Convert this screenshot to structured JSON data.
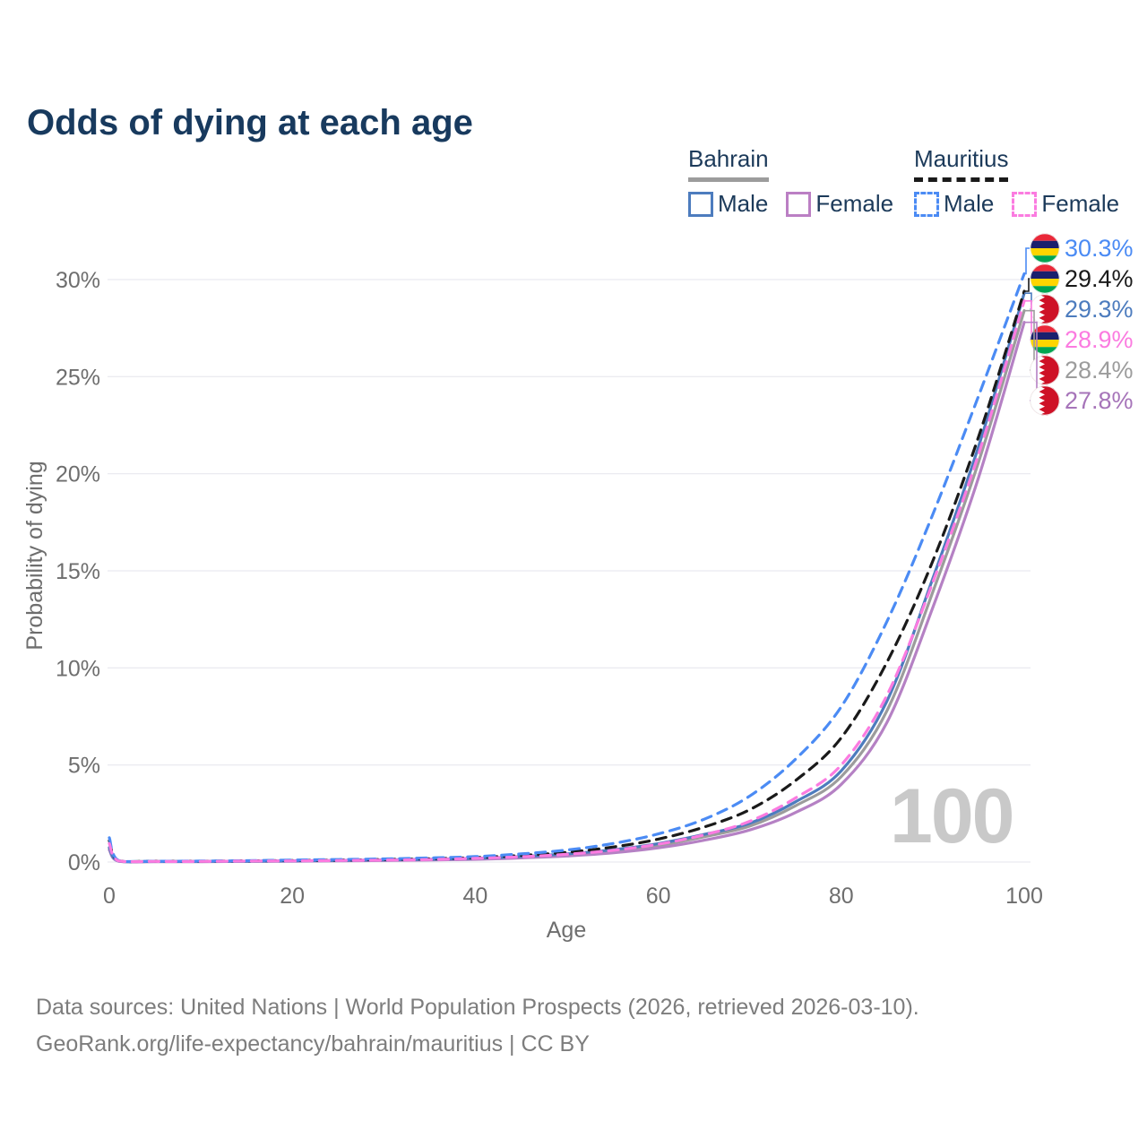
{
  "title": "Odds of dying at each age",
  "legend": {
    "groups": [
      {
        "title": "Bahrain",
        "line_style": "solid",
        "line_color": "#9c9c9c",
        "items": [
          {
            "label": "Male",
            "color": "#4d7cbe"
          },
          {
            "label": "Female",
            "color": "#bb7fc4"
          }
        ]
      },
      {
        "title": "Mauritius",
        "line_style": "dashed",
        "line_color": "#1a1a1a",
        "items": [
          {
            "label": "Male",
            "color": "#4b8bf4"
          },
          {
            "label": "Female",
            "color": "#fb7be0"
          }
        ]
      }
    ]
  },
  "footer": {
    "line1": "Data sources: United Nations | World Population Prospects (2026, retrieved 2026-03-10).",
    "line2": "GeoRank.org/life-expectancy/bahrain/mauritius | CC BY"
  },
  "chart_data": {
    "type": "line",
    "title": "Odds of dying at each age",
    "xlabel": "Age",
    "ylabel": "Probability of dying",
    "xlim": [
      0,
      100
    ],
    "ylim": [
      0,
      31
    ],
    "xticks": [
      0,
      20,
      40,
      60,
      80,
      100
    ],
    "yticks_percent": [
      0,
      5,
      10,
      15,
      20,
      25,
      30
    ],
    "grid": "horizontal",
    "legend_position": "top-right",
    "watermark": "100",
    "ages": [
      0,
      1,
      5,
      10,
      15,
      20,
      25,
      30,
      35,
      40,
      45,
      50,
      55,
      60,
      65,
      70,
      75,
      80,
      85,
      90,
      95,
      100
    ],
    "series": [
      {
        "name": "Mauritius Male",
        "country": "mauritius",
        "sex": "male",
        "style": "dashed",
        "color": "#4b8bf4",
        "label_color": "#4b8bf4",
        "end_label": "30.3%",
        "end_value": 30.3,
        "values_percent": [
          1.25,
          0.08,
          0.04,
          0.05,
          0.07,
          0.1,
          0.13,
          0.16,
          0.21,
          0.28,
          0.42,
          0.62,
          0.95,
          1.45,
          2.2,
          3.4,
          5.3,
          8.0,
          12.4,
          17.9,
          24.0,
          30.3
        ]
      },
      {
        "name": "Mauritius Both sexes",
        "country": "mauritius",
        "sex": "both",
        "style": "dashed",
        "color": "#1a1a1a",
        "label_color": "#1a1a1a",
        "end_label": "29.4%",
        "end_value": 29.4,
        "values_percent": [
          1.1,
          0.07,
          0.04,
          0.04,
          0.06,
          0.08,
          0.1,
          0.13,
          0.17,
          0.23,
          0.34,
          0.5,
          0.77,
          1.18,
          1.8,
          2.7,
          4.2,
          6.4,
          10.3,
          15.5,
          21.9,
          29.4
        ]
      },
      {
        "name": "Bahrain Male",
        "country": "bahrain",
        "sex": "male",
        "style": "solid",
        "color": "#4d7cbe",
        "label_color": "#4d7cbe",
        "end_label": "29.3%",
        "end_value": 29.3,
        "values_percent": [
          0.75,
          0.05,
          0.03,
          0.03,
          0.04,
          0.06,
          0.08,
          0.11,
          0.14,
          0.19,
          0.28,
          0.42,
          0.63,
          0.95,
          1.42,
          2.0,
          3.1,
          4.7,
          8.3,
          14.6,
          21.4,
          29.3
        ]
      },
      {
        "name": "Mauritius Female",
        "country": "mauritius",
        "sex": "female",
        "style": "dashed",
        "color": "#fb7be0",
        "label_color": "#fb7be0",
        "end_label": "28.9%",
        "end_value": 28.9,
        "values_percent": [
          0.95,
          0.06,
          0.03,
          0.03,
          0.05,
          0.06,
          0.08,
          0.1,
          0.13,
          0.19,
          0.27,
          0.4,
          0.6,
          0.92,
          1.4,
          2.1,
          3.3,
          5.0,
          8.6,
          14.4,
          21.0,
          28.9
        ]
      },
      {
        "name": "Bahrain Both sexes",
        "country": "bahrain",
        "sex": "both",
        "style": "solid",
        "color": "#9c9c9c",
        "label_color": "#9c9c9c",
        "end_label": "28.4%",
        "end_value": 28.4,
        "values_percent": [
          0.7,
          0.05,
          0.03,
          0.03,
          0.04,
          0.05,
          0.07,
          0.09,
          0.12,
          0.17,
          0.25,
          0.37,
          0.56,
          0.85,
          1.3,
          1.85,
          2.9,
          4.4,
          7.8,
          13.9,
          20.6,
          28.4
        ]
      },
      {
        "name": "Bahrain Female",
        "country": "bahrain",
        "sex": "female",
        "style": "solid",
        "color": "#b581c4",
        "label_color": "#a674b9",
        "end_label": "27.8%",
        "end_value": 27.8,
        "values_percent": [
          0.62,
          0.04,
          0.02,
          0.02,
          0.03,
          0.04,
          0.06,
          0.08,
          0.1,
          0.14,
          0.21,
          0.31,
          0.47,
          0.73,
          1.12,
          1.65,
          2.55,
          4.0,
          7.2,
          13.1,
          19.8,
          27.8
        ]
      }
    ],
    "flag_colors": {
      "mauritius": [
        "#EA2839",
        "#1A206D",
        "#FFD500",
        "#00A551"
      ],
      "bahrain": {
        "red": "#CE1126",
        "white": "#ffffff"
      }
    }
  }
}
